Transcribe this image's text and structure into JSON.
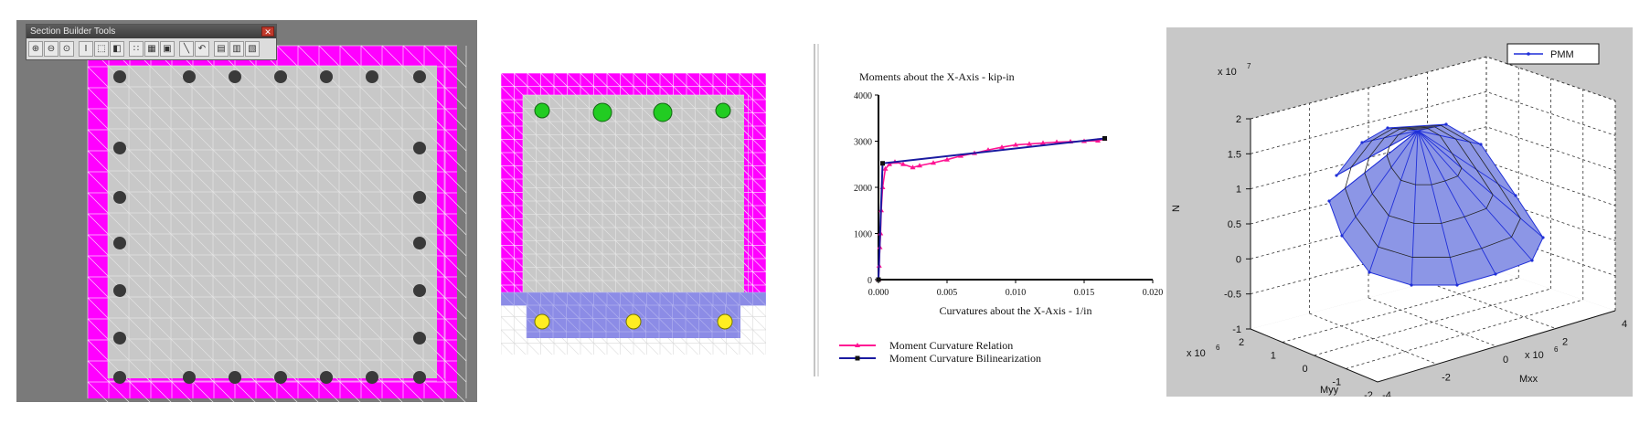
{
  "toolbox": {
    "title": "Section Builder Tools",
    "close_glyph": "✕",
    "tools": [
      {
        "name": "zoom-in-icon",
        "glyph": "⊕"
      },
      {
        "name": "zoom-out-icon",
        "glyph": "⊖"
      },
      {
        "name": "zoom-window-icon",
        "glyph": "⊙"
      },
      {
        "name": "sep"
      },
      {
        "name": "text-cursor-icon",
        "glyph": "I"
      },
      {
        "name": "select-box-icon",
        "glyph": "⬚"
      },
      {
        "name": "fill-icon",
        "glyph": "◧"
      },
      {
        "name": "sep"
      },
      {
        "name": "grid-icon",
        "glyph": "∷"
      },
      {
        "name": "mesh-icon",
        "glyph": "▦"
      },
      {
        "name": "properties-icon",
        "glyph": "▣"
      },
      {
        "name": "sep"
      },
      {
        "name": "line-tool-icon",
        "glyph": "╲"
      },
      {
        "name": "arc-tool-icon",
        "glyph": "↶"
      },
      {
        "name": "sep"
      },
      {
        "name": "save-icon",
        "glyph": "▤"
      },
      {
        "name": "copy-icon",
        "glyph": "▥"
      },
      {
        "name": "paste-icon",
        "glyph": "▧"
      }
    ]
  },
  "colors": {
    "cover": "#ff00ff",
    "core": "#c8c8c8",
    "mesh_line": "#e8e8e8",
    "rebar_dark": "#3a3a3a",
    "rebar_green": "#22cc22",
    "rebar_yellow": "#ffee22",
    "steel_plate": "#8c8ce6",
    "relation": "#ff1493",
    "bilinear": "#1a1aa0",
    "pmm": "#1f2fd8",
    "pmm_fill": "#8c96e6"
  },
  "moment_chart": {
    "chart_data": {
      "type": "line",
      "title": "Moments about the X-Axis - kip-in",
      "xlabel": "Curvatures about the X-Axis - 1/in",
      "xlim": [
        0,
        0.02
      ],
      "ylim": [
        0,
        4000
      ],
      "x_ticks": [
        "0.000",
        "0.005",
        "0.010",
        "0.015",
        "0.020"
      ],
      "y_ticks": [
        "0",
        "1000",
        "2000",
        "3000",
        "4000"
      ],
      "series": [
        {
          "name": "Moment Curvature Relation",
          "x": [
            0,
            5e-05,
            0.0001,
            0.00015,
            0.0002,
            0.0003,
            0.0005,
            0.0008,
            0.0012,
            0.0018,
            0.0025,
            0.003,
            0.004,
            0.005,
            0.006,
            0.007,
            0.008,
            0.009,
            0.01,
            0.011,
            0.012,
            0.013,
            0.014,
            0.015,
            0.016,
            0.0165
          ],
          "y": [
            0,
            300,
            700,
            1000,
            1500,
            2000,
            2400,
            2500,
            2550,
            2500,
            2430,
            2470,
            2530,
            2600,
            2680,
            2740,
            2810,
            2870,
            2920,
            2940,
            2960,
            2980,
            2990,
            3000,
            3010,
            3050
          ]
        },
        {
          "name": "Moment Curvature Bilinearization",
          "x": [
            0,
            0.0003,
            0.0165
          ],
          "y": [
            0,
            2520,
            3060
          ]
        }
      ],
      "legend_position": "bottom"
    }
  },
  "pmm_chart": {
    "chart_data": {
      "type": "surface3d",
      "xlabel": "Myy",
      "ylabel": "Mxx",
      "zlabel": "N",
      "x_multiplier": "x 10",
      "x_exp": "6",
      "y_multiplier": "x 10",
      "y_exp": "6",
      "z_multiplier": "x 10",
      "z_exp": "7",
      "xlim": [
        -2,
        2
      ],
      "ylim": [
        -4,
        4
      ],
      "zlim": [
        -1,
        2
      ],
      "x_ticks": [
        "2",
        "1",
        "0",
        "-1",
        "-2"
      ],
      "y_ticks": [
        "-4",
        "-2",
        "0",
        "2",
        "4"
      ],
      "z_ticks": [
        "2",
        "1.5",
        "1",
        "0.5",
        "0",
        "-0.5",
        "-1"
      ],
      "legend": [
        "PMM"
      ]
    }
  }
}
